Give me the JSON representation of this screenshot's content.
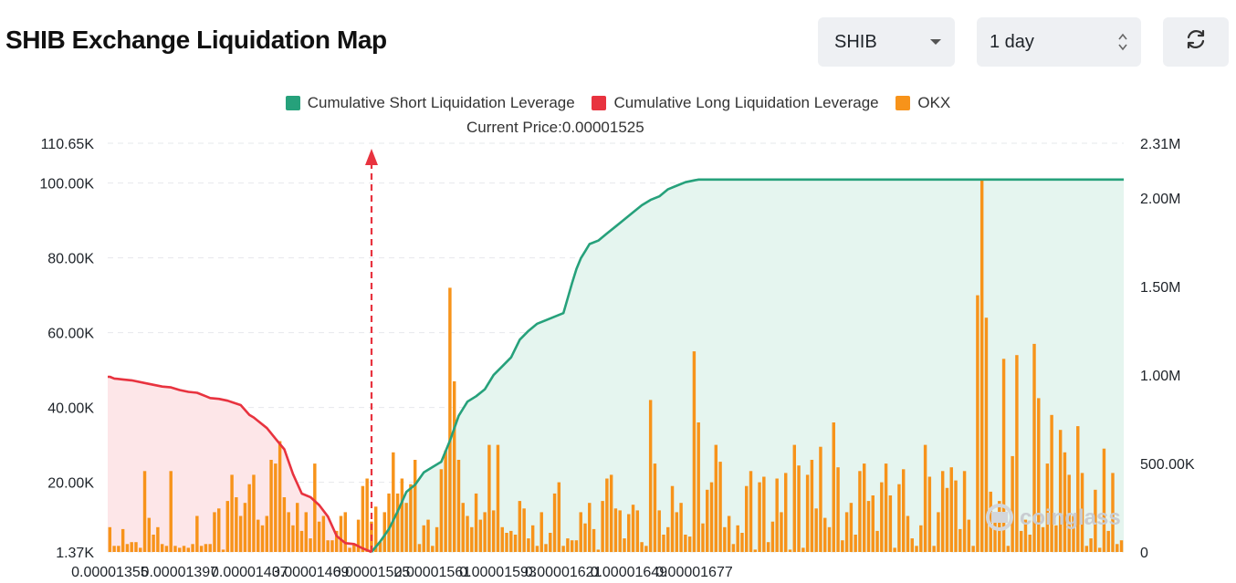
{
  "header": {
    "title": "SHIB Exchange Liquidation Map",
    "coin_select": "SHIB",
    "range_select": "1 day"
  },
  "legend": {
    "short": "Cumulative Short Liquidation Leverage",
    "long": "Cumulative Long Liquidation Leverage",
    "okx": "OKX"
  },
  "colors": {
    "short": "#26a17b",
    "long": "#e8333f",
    "okx": "#f7931a",
    "short_fill": "#e5f5ef",
    "long_fill": "#fde6e8"
  },
  "watermark": "coinglass",
  "chart_data": {
    "type": "bar",
    "title": "SHIB Exchange Liquidation Map",
    "current_price_label": "Current Price:0.00001525",
    "current_price": 1.525e-05,
    "x_ticks": [
      "0.00001355",
      "0.00001397",
      "0.00001437",
      "0.00001469",
      "0.00001525",
      "0.00001561",
      "0.00001593",
      "0.00001621",
      "0.00001649",
      "0.00001677"
    ],
    "x_tick_bar_index": [
      0,
      16,
      32,
      46,
      60,
      74,
      89,
      104,
      119,
      134
    ],
    "y_left_ticks": [
      "1.37K",
      "20.00K",
      "40.00K",
      "60.00K",
      "80.00K",
      "100.00K",
      "110.65K"
    ],
    "y_left_tick_values": [
      1370,
      20000,
      40000,
      60000,
      80000,
      100000,
      110650
    ],
    "y_left_range": [
      1370,
      110650
    ],
    "y_right_ticks": [
      "0",
      "500.00K",
      "1.00M",
      "1.50M",
      "2.00M",
      "2.31M"
    ],
    "y_right_tick_values": [
      0,
      500000,
      1000000,
      1500000,
      2000000,
      2310000
    ],
    "y_right_range": [
      0,
      2310000
    ],
    "current_price_bar_index": 60,
    "series": [
      {
        "name": "OKX",
        "type": "bar",
        "axis": "left",
        "values": [
          8000,
          3000,
          3000,
          7500,
          3500,
          4000,
          4000,
          2500,
          23000,
          10500,
          6000,
          8000,
          3500,
          3000,
          23000,
          3000,
          2500,
          3000,
          2500,
          3500,
          11000,
          3000,
          3500,
          3500,
          12000,
          13000,
          2000,
          15000,
          22000,
          16000,
          11000,
          14500,
          19500,
          22000,
          10000,
          8500,
          11000,
          26000,
          25000,
          31000,
          16000,
          12000,
          8500,
          14500,
          7000,
          12000,
          5000,
          25000,
          9500,
          11000,
          4500,
          4500,
          7000,
          11000,
          12000,
          2500,
          3500,
          10000,
          19000,
          21000,
          9500,
          13500,
          4000,
          12000,
          17000,
          28000,
          17000,
          21000,
          14500,
          19500,
          26000,
          3500,
          8500,
          10000,
          3000,
          8000,
          23500,
          28500,
          72000,
          47000,
          26000,
          14500,
          11000,
          8000,
          17000,
          10000,
          12000,
          30000,
          12500,
          30000,
          8000,
          6500,
          7000,
          6000,
          15000,
          13000,
          5000,
          8500,
          3000,
          12000,
          3500,
          6500,
          17000,
          20000,
          3000,
          5000,
          4500,
          4500,
          12000,
          9000,
          14500,
          7500,
          2000,
          15000,
          21000,
          22000,
          13000,
          12500,
          5000,
          11500,
          14000,
          12500,
          4000,
          3000,
          42000,
          25000,
          12500,
          6000,
          8000,
          19000,
          12000,
          14500,
          6000,
          5500,
          55000,
          36000,
          9000,
          18000,
          20000,
          30000,
          25500,
          8000,
          11000,
          3500,
          8500,
          6500,
          19000,
          23000,
          2000,
          20000,
          21500,
          4000,
          9500,
          21000,
          12000,
          22500,
          2000,
          30000,
          24500,
          2500,
          22000,
          26000,
          13000,
          29500,
          10500,
          8000,
          36000,
          24000,
          4500,
          12000,
          14500,
          6000,
          23000,
          25000,
          15000,
          16500,
          7000,
          20000,
          25000,
          16500,
          2500,
          19500,
          23500,
          11000,
          5000,
          3000,
          8500,
          30000,
          21500,
          3000,
          12000,
          23000,
          18500,
          24000,
          20500,
          7500,
          23000,
          10000,
          3000,
          70000,
          101000,
          64000,
          17500,
          12000,
          15000,
          53000,
          3000,
          27000,
          54000,
          7000,
          10000,
          6000,
          57000,
          42500,
          8000,
          25000,
          38000,
          8500,
          34000,
          28000,
          22000,
          11000,
          35000,
          22500,
          3000,
          5000,
          18000,
          2500,
          29000,
          7000,
          22500,
          3500,
          4500
        ]
      },
      {
        "name": "Cumulative Long Liquidation Leverage",
        "type": "area",
        "axis": "right",
        "bar_index": [
          0,
          1,
          3,
          5,
          9,
          12,
          14,
          16,
          18,
          20,
          22,
          23,
          25,
          27,
          30,
          32,
          33,
          34,
          36,
          38,
          40,
          42,
          44,
          46,
          48,
          50,
          52,
          54,
          56,
          58,
          60
        ],
        "values": [
          990000,
          980000,
          975000,
          970000,
          950000,
          935000,
          930000,
          915000,
          905000,
          900000,
          880000,
          870000,
          865000,
          855000,
          830000,
          775000,
          760000,
          740000,
          700000,
          640000,
          580000,
          440000,
          330000,
          310000,
          265000,
          200000,
          90000,
          50000,
          45000,
          20000,
          0
        ]
      },
      {
        "name": "Cumulative Short Liquidation Leverage",
        "type": "area",
        "axis": "right",
        "bar_index": [
          60,
          62,
          64,
          66,
          68,
          70,
          72,
          74,
          76,
          78,
          80,
          82,
          84,
          86,
          88,
          90,
          92,
          94,
          96,
          98,
          100,
          102,
          104,
          106,
          107,
          108,
          109,
          110,
          112,
          114,
          116,
          118,
          120,
          122,
          124,
          126,
          128,
          130,
          132,
          134,
          135
        ],
        "values": [
          0,
          60000,
          130000,
          230000,
          340000,
          380000,
          450000,
          480000,
          510000,
          630000,
          770000,
          850000,
          880000,
          920000,
          1000000,
          1050000,
          1100000,
          1200000,
          1250000,
          1290000,
          1310000,
          1330000,
          1350000,
          1520000,
          1600000,
          1660000,
          1700000,
          1740000,
          1760000,
          1800000,
          1840000,
          1880000,
          1920000,
          1960000,
          1990000,
          2010000,
          2050000,
          2070000,
          2090000,
          2100000,
          2105000
        ]
      }
    ]
  }
}
